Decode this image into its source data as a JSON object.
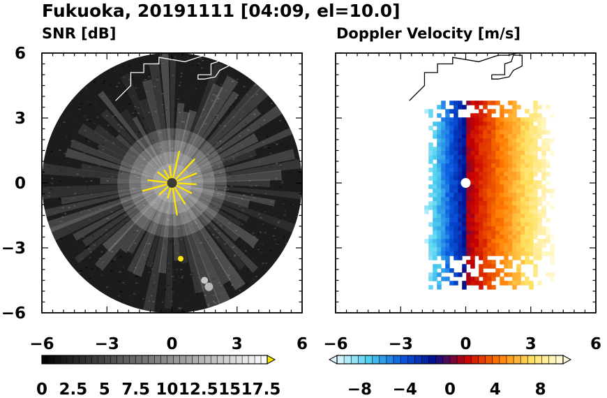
{
  "figure_title": "Fukuoka, 20191111 [04:09, el=10.0]",
  "chart_data": [
    {
      "type": "heatmap",
      "title": "SNR [dB]",
      "x_ticks": [
        "−6",
        "−3",
        "0",
        "3",
        "6"
      ],
      "y_ticks": [
        "6",
        "3",
        "0",
        "−3",
        "−6"
      ],
      "xlim": [
        -6,
        6
      ],
      "ylim": [
        -6,
        6
      ],
      "range_radius": 6,
      "colorbar": {
        "tick_labels": [
          "0",
          "2.5",
          "5",
          "7.5",
          "10",
          "12.5",
          "15",
          "17.5"
        ],
        "min": 0,
        "max": 18,
        "bins": 36,
        "extend": "max",
        "colors": {
          "low": "#000000",
          "high": "#ffffff",
          "over": "#ffe600"
        }
      },
      "fields": {
        "background_snr_db": 2,
        "radial_spokes": true,
        "strong_echo_near_radar": true,
        "echo_clusters": [
          {
            "x": 0.4,
            "y": -3.5,
            "snr_db": 18
          },
          {
            "x": 1.5,
            "y": -4.5,
            "snr_db": 14
          },
          {
            "x": 1.7,
            "y": -4.8,
            "snr_db": 13
          }
        ]
      },
      "radar": {
        "x": 0,
        "y": 0
      }
    },
    {
      "type": "heatmap",
      "title": "Doppler Velocity [m/s]",
      "x_ticks": [
        "−6",
        "−3",
        "0",
        "3",
        "6"
      ],
      "y_ticks": [],
      "xlim": [
        -6,
        6
      ],
      "ylim": [
        -6,
        6
      ],
      "colorbar": {
        "tick_labels": [
          "−8",
          "−4",
          "0",
          "4",
          "8"
        ],
        "min": -10,
        "max": 10,
        "bins": 32,
        "extend": "both",
        "colors": [
          "#dff8ff",
          "#4fd0f0",
          "#0a5ae0",
          "#001090",
          "#c80000",
          "#ff7a00",
          "#ffe060",
          "#fffce0"
        ]
      },
      "fields": {
        "velocity_east_m_s": 9,
        "velocity_west_m_s": -8,
        "echo_extent": {
          "north": 3.8,
          "south": -4.8,
          "west": -2.1,
          "east": 4.0
        }
      },
      "radar": {
        "x": 0,
        "y": 0
      }
    }
  ]
}
